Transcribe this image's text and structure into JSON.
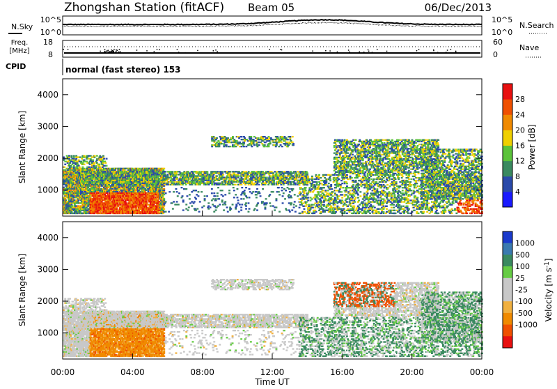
{
  "header": {
    "title": "Zhongshan Station (fitACF)",
    "beam": "Beam 05",
    "date": "06/Dec/2013"
  },
  "sky_panel": {
    "left_label": "N.Sky",
    "right_label": "N.Search",
    "left_ticks": [
      "10^5",
      "10^0"
    ],
    "right_ticks": [
      "10^5",
      "10^0"
    ]
  },
  "freq_panel": {
    "left_label_1": "Freq.",
    "left_label_2": "[MHz]",
    "right_label": "Nave",
    "left_ticks": [
      "18",
      "8"
    ],
    "right_ticks": [
      "60",
      "0"
    ]
  },
  "cpid": {
    "label": "CPID",
    "mode": "normal (fast stereo) 153"
  },
  "chart_data": [
    {
      "type": "heatmap",
      "id": "power",
      "ylabel": "Slant Range [km]",
      "ylim": [
        180,
        4500
      ],
      "yticks": [
        "1000",
        "2000",
        "3000",
        "4000"
      ],
      "xlim": [
        "00:00",
        "24:00"
      ],
      "colorbar_label": "Power [dB]",
      "colorbar_ticks": [
        "4",
        "8",
        "12",
        "16",
        "20",
        "24",
        "28"
      ],
      "colorscale": [
        "#1a1aff",
        "#2a4aaa",
        "#3a8a60",
        "#5bc33a",
        "#f0d000",
        "#f08a00",
        "#f05000",
        "#e81010"
      ]
    },
    {
      "type": "heatmap",
      "id": "velocity",
      "ylabel": "Slant Range [km]",
      "ylim": [
        180,
        4500
      ],
      "yticks": [
        "1000",
        "2000",
        "3000",
        "4000"
      ],
      "xlim": [
        "00:00",
        "24:00"
      ],
      "xlabel": "Time UT",
      "xticks": [
        "00:00",
        "04:00",
        "08:00",
        "12:00",
        "16:00",
        "20:00",
        "00:00"
      ],
      "colorbar_label": "Velocity [m s",
      "colorbar_label_sup": "-1",
      "colorbar_label_end": "]",
      "colorbar_ticks": [
        "1000",
        "500",
        "100",
        "25",
        "-25",
        "-100",
        "-500",
        "-1000"
      ],
      "colorscale": [
        "#e81010",
        "#f05000",
        "#f08a00",
        "#f0b040",
        "#c8c8c8",
        "#c8c8c8",
        "#66cc44",
        "#3a8a60",
        "#3a7ab0",
        "#1a3acc"
      ]
    }
  ]
}
